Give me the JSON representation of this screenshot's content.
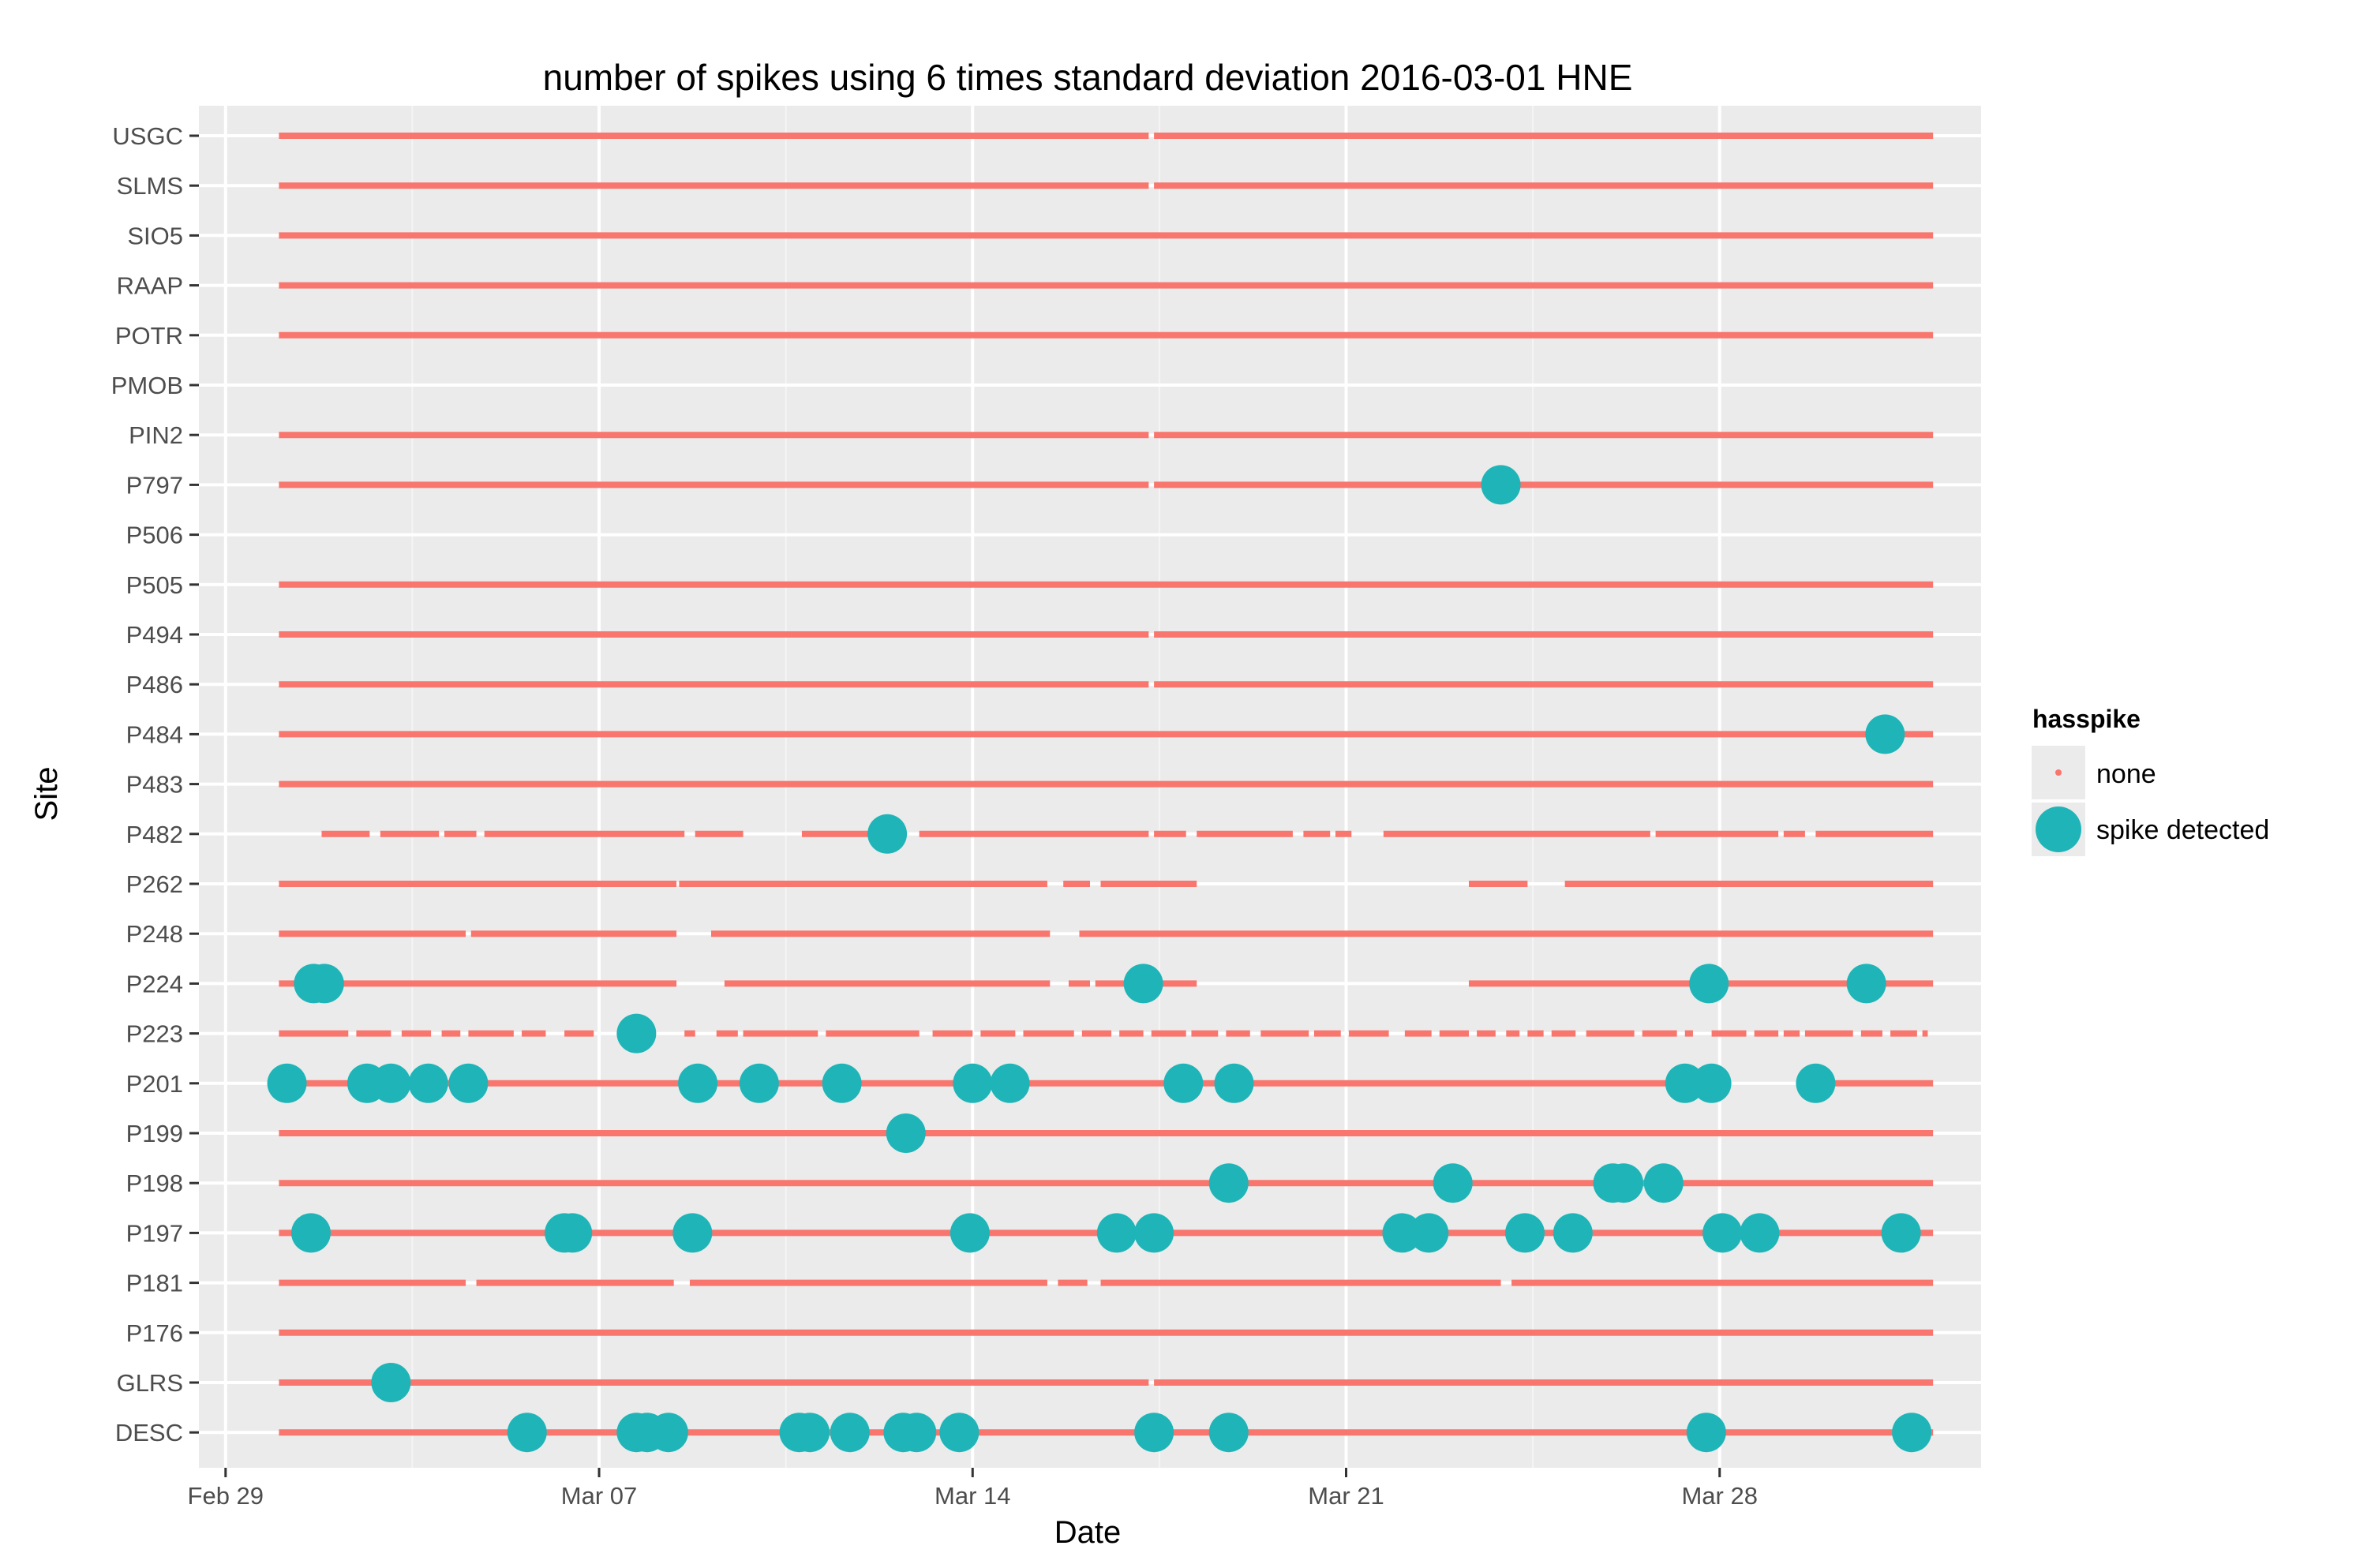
{
  "chart_data": {
    "type": "scatter",
    "title": "number of spikes using  6 times standard deviation 2016-03-01 HNE",
    "xlabel": "Date",
    "ylabel": "Site",
    "x_unit": "days since Mar 01, 2016",
    "xlim": [
      -1.5,
      31.9
    ],
    "x_ticks": [
      {
        "value": -1,
        "label": "Feb 29"
      },
      {
        "value": 6,
        "label": "Mar 07"
      },
      {
        "value": 13,
        "label": "Mar 14"
      },
      {
        "value": 20,
        "label": "Mar 21"
      },
      {
        "value": 27,
        "label": "Mar 28"
      }
    ],
    "sites": [
      "USGC",
      "SLMS",
      "SIO5",
      "RAAP",
      "POTR",
      "PMOB",
      "PIN2",
      "P797",
      "P506",
      "P505",
      "P494",
      "P486",
      "P484",
      "P483",
      "P482",
      "P262",
      "P248",
      "P224",
      "P223",
      "P201",
      "P199",
      "P198",
      "P197",
      "P181",
      "P176",
      "GLRS",
      "DESC"
    ],
    "legend": {
      "title": "hasspike",
      "entries": [
        {
          "key": "none",
          "label": "none",
          "color": "#F8766D"
        },
        {
          "key": "spike",
          "label": "spike detected",
          "color": "#00BFC4"
        }
      ]
    },
    "colors": {
      "panel": "#EBEBEB",
      "grid": "#FFFFFF",
      "none": "#F8766D",
      "spike": "#1FB5B8"
    },
    "none_series": [
      {
        "site": "USGC",
        "segments": [
          [
            0,
            16.3
          ],
          [
            16.4,
            31
          ]
        ]
      },
      {
        "site": "SLMS",
        "segments": [
          [
            0,
            16.3
          ],
          [
            16.4,
            31
          ]
        ]
      },
      {
        "site": "SIO5",
        "segments": [
          [
            0,
            31
          ]
        ]
      },
      {
        "site": "RAAP",
        "segments": [
          [
            0,
            31
          ]
        ]
      },
      {
        "site": "POTR",
        "segments": [
          [
            0,
            31
          ]
        ]
      },
      {
        "site": "PMOB",
        "segments": []
      },
      {
        "site": "PIN2",
        "segments": [
          [
            0,
            16.3
          ],
          [
            16.4,
            31
          ]
        ]
      },
      {
        "site": "P797",
        "segments": [
          [
            0,
            16.3
          ],
          [
            16.4,
            31
          ]
        ]
      },
      {
        "site": "P506",
        "segments": []
      },
      {
        "site": "P505",
        "segments": [
          [
            0,
            31
          ]
        ]
      },
      {
        "site": "P494",
        "segments": [
          [
            0,
            16.3
          ],
          [
            16.4,
            31
          ]
        ]
      },
      {
        "site": "P486",
        "segments": [
          [
            0,
            16.3
          ],
          [
            16.4,
            31
          ]
        ]
      },
      {
        "site": "P484",
        "segments": [
          [
            0,
            31
          ]
        ]
      },
      {
        "site": "P483",
        "segments": [
          [
            0,
            31
          ]
        ]
      },
      {
        "site": "P482",
        "segments": [
          [
            0.8,
            1.7
          ],
          [
            1.9,
            3.0
          ],
          [
            3.1,
            3.7
          ],
          [
            3.85,
            7.6
          ],
          [
            7.8,
            8.7
          ],
          [
            9.8,
            11.6
          ],
          [
            12.0,
            16.3
          ],
          [
            16.4,
            17.0
          ],
          [
            17.2,
            19.0
          ],
          [
            19.2,
            19.7
          ],
          [
            19.8,
            20.1
          ],
          [
            20.7,
            25.7
          ],
          [
            25.8,
            28.1
          ],
          [
            28.2,
            28.6
          ],
          [
            28.8,
            31
          ]
        ]
      },
      {
        "site": "P262",
        "segments": [
          [
            0,
            7.45
          ],
          [
            7.5,
            14.4
          ],
          [
            14.7,
            15.2
          ],
          [
            15.4,
            17.2
          ],
          [
            22.3,
            23.4
          ],
          [
            24.1,
            31
          ]
        ]
      },
      {
        "site": "P248",
        "segments": [
          [
            0,
            3.5
          ],
          [
            3.6,
            7.45
          ],
          [
            8.1,
            14.45
          ],
          [
            15.0,
            31
          ]
        ]
      },
      {
        "site": "P224",
        "segments": [
          [
            0,
            7.45
          ],
          [
            8.35,
            14.45
          ],
          [
            14.8,
            15.2
          ],
          [
            15.3,
            17.2
          ],
          [
            22.3,
            31
          ]
        ]
      },
      {
        "site": "P223",
        "segments": [
          [
            0,
            1.3
          ],
          [
            1.45,
            2.1
          ],
          [
            2.3,
            2.85
          ],
          [
            3.05,
            3.4
          ],
          [
            3.55,
            4.4
          ],
          [
            4.55,
            5.0
          ],
          [
            5.35,
            5.9
          ],
          [
            6.4,
            6.8
          ],
          [
            7.6,
            7.8
          ],
          [
            8.2,
            8.6
          ],
          [
            8.7,
            10.1
          ],
          [
            10.25,
            12.0
          ],
          [
            12.25,
            13.0
          ],
          [
            13.15,
            13.8
          ],
          [
            13.95,
            14.9
          ],
          [
            15.05,
            15.6
          ],
          [
            15.75,
            16.2
          ],
          [
            16.35,
            17.0
          ],
          [
            17.1,
            17.6
          ],
          [
            17.75,
            18.2
          ],
          [
            18.4,
            19.3
          ],
          [
            19.4,
            19.9
          ],
          [
            20.05,
            20.8
          ],
          [
            21.1,
            21.6
          ],
          [
            21.75,
            22.3
          ],
          [
            22.45,
            22.8
          ],
          [
            23.0,
            23.25
          ],
          [
            23.4,
            23.7
          ],
          [
            23.85,
            24.3
          ],
          [
            24.5,
            25.4
          ],
          [
            25.55,
            26.2
          ],
          [
            26.35,
            26.5
          ],
          [
            26.85,
            27.5
          ],
          [
            27.65,
            28.1
          ],
          [
            28.2,
            28.5
          ],
          [
            28.6,
            29.5
          ],
          [
            29.65,
            30.05
          ],
          [
            30.2,
            30.7
          ],
          [
            30.8,
            30.9
          ]
        ]
      },
      {
        "site": "P201",
        "segments": [
          [
            0,
            27.2
          ],
          [
            29.0,
            31
          ]
        ]
      },
      {
        "site": "P199",
        "segments": [
          [
            0,
            31
          ]
        ]
      },
      {
        "site": "P198",
        "segments": [
          [
            0,
            31
          ]
        ]
      },
      {
        "site": "P197",
        "segments": [
          [
            0,
            24.2
          ],
          [
            24.35,
            31
          ]
        ]
      },
      {
        "site": "P181",
        "segments": [
          [
            0,
            3.5
          ],
          [
            3.7,
            7.4
          ],
          [
            7.7,
            14.4
          ],
          [
            14.6,
            15.15
          ],
          [
            15.4,
            22.9
          ],
          [
            23.1,
            31
          ]
        ]
      },
      {
        "site": "P176",
        "segments": [
          [
            0,
            31
          ]
        ]
      },
      {
        "site": "GLRS",
        "segments": [
          [
            0,
            16.3
          ],
          [
            16.4,
            31
          ]
        ]
      },
      {
        "site": "DESC",
        "segments": [
          [
            0,
            31
          ]
        ]
      }
    ],
    "spike_points": [
      {
        "site": "P797",
        "x": [
          22.9
        ]
      },
      {
        "site": "P484",
        "x": [
          30.1
        ]
      },
      {
        "site": "P482",
        "x": [
          11.4
        ]
      },
      {
        "site": "P224",
        "x": [
          0.65,
          0.85,
          16.2,
          26.8,
          29.75
        ]
      },
      {
        "site": "P223",
        "x": [
          6.7
        ]
      },
      {
        "site": "P201",
        "x": [
          0.15,
          1.65,
          2.1,
          2.8,
          3.55,
          7.85,
          9.0,
          10.55,
          13.0,
          13.7,
          16.95,
          17.9,
          26.35,
          26.85,
          28.8
        ]
      },
      {
        "site": "P199",
        "x": [
          11.75
        ]
      },
      {
        "site": "P198",
        "x": [
          17.8,
          22.0,
          25.0,
          25.2,
          25.95
        ]
      },
      {
        "site": "P197",
        "x": [
          0.6,
          5.35,
          5.5,
          7.75,
          12.95,
          15.7,
          16.4,
          21.05,
          21.55,
          23.35,
          24.25,
          27.05,
          27.75,
          30.4
        ]
      },
      {
        "site": "GLRS",
        "x": [
          2.1
        ]
      },
      {
        "site": "DESC",
        "x": [
          4.65,
          6.7,
          6.9,
          7.3,
          9.75,
          9.95,
          10.7,
          11.7,
          11.95,
          12.75,
          16.4,
          17.8,
          26.75,
          30.6
        ]
      }
    ]
  }
}
